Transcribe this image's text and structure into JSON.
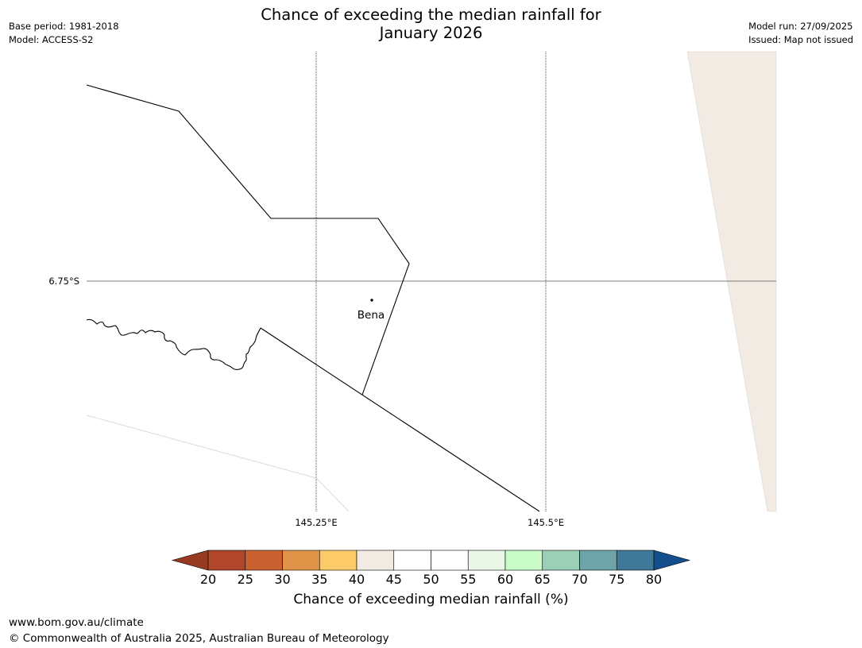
{
  "header": {
    "title_line1": "Chance of exceeding the median rainfall for",
    "title_line2": "January 2026",
    "base_period": "Base period: 1981-2018",
    "model": "Model: ACCESS-S2",
    "model_run": "Model run: 27/09/2025",
    "issued": "Issued: Map not issued"
  },
  "map": {
    "lat_label": "6.75°S",
    "lon_labels": [
      "145.25°E",
      "145.5°E"
    ],
    "place_name": "Bena"
  },
  "colorbar": {
    "ticks": [
      "20",
      "25",
      "30",
      "35",
      "40",
      "45",
      "50",
      "55",
      "60",
      "65",
      "70",
      "75",
      "80"
    ],
    "colors": [
      "#b0472a",
      "#c96030",
      "#e09448",
      "#fdca6a",
      "#f1ebe4",
      "#ffffff",
      "#ffffff",
      "#e9f6e8",
      "#c9fcc9",
      "#9ccfb8",
      "#6ea4a7",
      "#40789a"
    ],
    "under_color": "#973a22",
    "over_color": "#134f8c",
    "label": "Chance of exceeding median rainfall (%)"
  },
  "legend_fill": "#f1ebe4",
  "footer": {
    "url": "www.bom.gov.au/climate",
    "copyright": "© Commonwealth of Australia 2025, Australian Bureau of Meteorology"
  }
}
